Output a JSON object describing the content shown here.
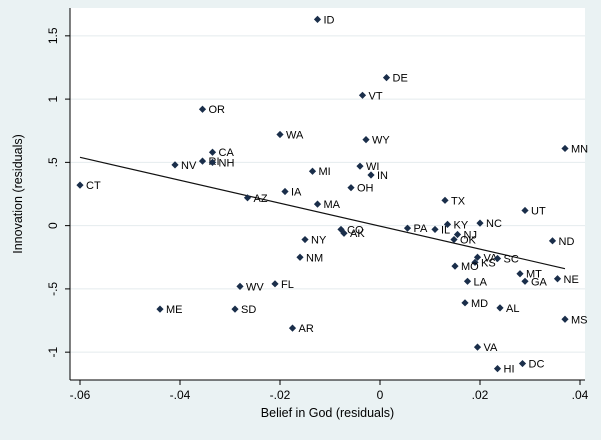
{
  "chart_data": {
    "type": "scatter",
    "title": "",
    "xlabel": "Belief in God (residuals)",
    "ylabel": "Innovation (residuals)",
    "xlim": [
      -0.062,
      0.041
    ],
    "ylim": [
      -1.22,
      1.72
    ],
    "xticks": [
      -0.06,
      -0.04,
      -0.02,
      0,
      0.02,
      0.04
    ],
    "xtick_labels": [
      "-.06",
      "-.04",
      "-.02",
      "0",
      ".02",
      ".04"
    ],
    "yticks": [
      -1,
      -0.5,
      0,
      0.5,
      1,
      1.5
    ],
    "ytick_labels": [
      "-1",
      "-.5",
      "0",
      ".5",
      "1",
      "1.5"
    ],
    "grid": "horizontal",
    "legend": "none",
    "marker": "diamond",
    "point_color": "#1a2e4a",
    "fit_line_color": "#111111",
    "fit_line": {
      "x": [
        -0.06,
        0.037
      ],
      "y": [
        0.54,
        -0.34
      ]
    },
    "points": [
      {
        "label": "ID",
        "x": -0.0125,
        "y": 1.63
      },
      {
        "label": "DE",
        "x": 0.0013,
        "y": 1.17
      },
      {
        "label": "VT",
        "x": -0.0035,
        "y": 1.03
      },
      {
        "label": "OR",
        "x": -0.0355,
        "y": 0.92
      },
      {
        "label": "WA",
        "x": -0.02,
        "y": 0.72
      },
      {
        "label": "WY",
        "x": -0.0028,
        "y": 0.68
      },
      {
        "label": "MN",
        "x": 0.037,
        "y": 0.61
      },
      {
        "label": "CA",
        "x": -0.0335,
        "y": 0.58
      },
      {
        "label": "RI",
        "x": -0.0355,
        "y": 0.51
      },
      {
        "label": "NH",
        "x": -0.0335,
        "y": 0.5
      },
      {
        "label": "NV",
        "x": -0.041,
        "y": 0.48
      },
      {
        "label": "WI",
        "x": -0.004,
        "y": 0.47
      },
      {
        "label": "MI",
        "x": -0.0135,
        "y": 0.43
      },
      {
        "label": "IN",
        "x": -0.0018,
        "y": 0.4
      },
      {
        "label": "CT",
        "x": -0.06,
        "y": 0.32
      },
      {
        "label": "OH",
        "x": -0.0058,
        "y": 0.3
      },
      {
        "label": "IA",
        "x": -0.019,
        "y": 0.27
      },
      {
        "label": "AZ",
        "x": -0.0265,
        "y": 0.22
      },
      {
        "label": "TX",
        "x": 0.013,
        "y": 0.2
      },
      {
        "label": "MA",
        "x": -0.0125,
        "y": 0.17
      },
      {
        "label": "UT",
        "x": 0.029,
        "y": 0.12
      },
      {
        "label": "NC",
        "x": 0.02,
        "y": 0.02
      },
      {
        "label": "KY",
        "x": 0.0135,
        "y": 0.01
      },
      {
        "label": "PA",
        "x": 0.0055,
        "y": -0.02
      },
      {
        "label": "IL",
        "x": 0.011,
        "y": -0.03
      },
      {
        "label": "CO",
        "x": -0.0078,
        "y": -0.03
      },
      {
        "label": "AK",
        "x": -0.0072,
        "y": -0.06
      },
      {
        "label": "NJ",
        "x": 0.0155,
        "y": -0.07
      },
      {
        "label": "OK",
        "x": 0.0148,
        "y": -0.11
      },
      {
        "label": "NY",
        "x": -0.015,
        "y": -0.11
      },
      {
        "label": "ND",
        "x": 0.0345,
        "y": -0.12
      },
      {
        "label": "NM",
        "x": -0.016,
        "y": -0.25
      },
      {
        "label": "VA",
        "x": 0.0195,
        "y": -0.25
      },
      {
        "label": "SC",
        "x": 0.0235,
        "y": -0.26
      },
      {
        "label": "KS",
        "x": 0.019,
        "y": -0.29
      },
      {
        "label": "MO",
        "x": 0.015,
        "y": -0.32
      },
      {
        "label": "MT",
        "x": 0.028,
        "y": -0.38
      },
      {
        "label": "NE",
        "x": 0.0355,
        "y": -0.42
      },
      {
        "label": "LA",
        "x": 0.0175,
        "y": -0.44
      },
      {
        "label": "GA",
        "x": 0.029,
        "y": -0.44
      },
      {
        "label": "FL",
        "x": -0.021,
        "y": -0.46
      },
      {
        "label": "WV",
        "x": -0.028,
        "y": -0.48
      },
      {
        "label": "MD",
        "x": 0.017,
        "y": -0.61
      },
      {
        "label": "AL",
        "x": 0.024,
        "y": -0.65
      },
      {
        "label": "ME",
        "x": -0.044,
        "y": -0.66
      },
      {
        "label": "SD",
        "x": -0.029,
        "y": -0.66
      },
      {
        "label": "MS",
        "x": 0.037,
        "y": -0.74
      },
      {
        "label": "AR",
        "x": -0.0175,
        "y": -0.81
      },
      {
        "label": "VA",
        "x": 0.0195,
        "y": -0.96
      },
      {
        "label": "DC",
        "x": 0.0285,
        "y": -1.09
      },
      {
        "label": "HI",
        "x": 0.0235,
        "y": -1.13
      }
    ]
  }
}
